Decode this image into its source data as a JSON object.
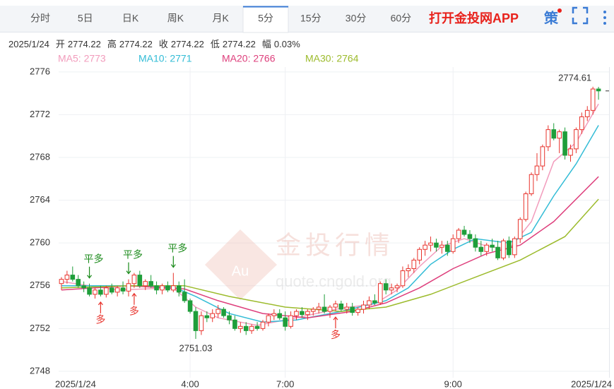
{
  "header": {
    "tabs": [
      "分时",
      "5日",
      "日K",
      "周K",
      "月K",
      "5分",
      "15分",
      "30分",
      "60分"
    ],
    "active_tab": 5,
    "promo": "打开金投网APP",
    "strategy": "策"
  },
  "info": {
    "date": "2025/1/24",
    "items": [
      {
        "label": "开",
        "value": "2774.22"
      },
      {
        "label": "高",
        "value": "2774.22"
      },
      {
        "label": "收",
        "value": "2774.22"
      },
      {
        "label": "低",
        "value": "2774.22"
      },
      {
        "label": "幅",
        "value": "0.03%"
      }
    ]
  },
  "watermark": {
    "logo": "Au",
    "brand": "金投行情",
    "site": "quote.cngold.org"
  },
  "chart_data": {
    "type": "candlestick",
    "up_color": "#e8332c",
    "down_color": "#1e9e3a",
    "grid": true,
    "xlim": [
      -0.5,
      97
    ],
    "ylim": [
      2747.4,
      2776.45
    ],
    "yticks": [
      2748,
      2752,
      2756,
      2760,
      2764,
      2768,
      2772,
      2776
    ],
    "xticks": [
      {
        "value": 0,
        "label": "2025/1/24"
      },
      {
        "value": 23,
        "label": "4:00"
      },
      {
        "value": 40,
        "label": "7:00"
      },
      {
        "value": 70,
        "label": "9:00"
      },
      {
        "value": 96,
        "label": "2025/1/24"
      }
    ],
    "ohlc": [
      [
        2756.2,
        2756.8,
        2755.6,
        2756.6
      ],
      [
        2756.6,
        2757.4,
        2756.2,
        2757.0
      ],
      [
        2757.0,
        2757.8,
        2756.4,
        2756.6
      ],
      [
        2756.6,
        2757.0,
        2755.8,
        2756.0
      ],
      [
        2756.0,
        2756.4,
        2755.4,
        2755.8
      ],
      [
        2755.8,
        2756.2,
        2755.0,
        2755.2
      ],
      [
        2755.2,
        2755.8,
        2754.8,
        2755.6
      ],
      [
        2755.6,
        2756.0,
        2755.0,
        2755.2
      ],
      [
        2755.2,
        2756.0,
        2754.9,
        2755.8
      ],
      [
        2755.8,
        2756.2,
        2755.2,
        2755.4
      ],
      [
        2755.4,
        2756.0,
        2755.0,
        2755.8
      ],
      [
        2755.8,
        2756.4,
        2755.2,
        2755.5
      ],
      [
        2755.5,
        2756.6,
        2755.0,
        2756.2
      ],
      [
        2756.2,
        2757.2,
        2755.8,
        2757.0
      ],
      [
        2757.0,
        2757.4,
        2755.8,
        2756.0
      ],
      [
        2756.0,
        2756.6,
        2755.6,
        2756.4
      ],
      [
        2756.4,
        2757.0,
        2755.8,
        2756.0
      ],
      [
        2756.0,
        2756.4,
        2755.2,
        2755.6
      ],
      [
        2755.6,
        2756.2,
        2755.2,
        2756.0
      ],
      [
        2756.0,
        2756.4,
        2755.4,
        2755.6
      ],
      [
        2755.6,
        2757.2,
        2755.4,
        2756.0
      ],
      [
        2756.0,
        2756.4,
        2755.0,
        2755.4
      ],
      [
        2755.4,
        2756.6,
        2754.4,
        2754.6
      ],
      [
        2754.6,
        2754.8,
        2753.4,
        2753.6
      ],
      [
        2753.6,
        2754.0,
        2751.03,
        2751.8
      ],
      [
        2751.8,
        2753.6,
        2751.4,
        2753.2
      ],
      [
        2753.2,
        2753.6,
        2752.6,
        2753.0
      ],
      [
        2753.0,
        2753.8,
        2752.6,
        2753.4
      ],
      [
        2753.4,
        2754.2,
        2753.0,
        2753.8
      ],
      [
        2753.8,
        2754.0,
        2753.0,
        2753.2
      ],
      [
        2753.2,
        2753.6,
        2752.4,
        2752.8
      ],
      [
        2752.8,
        2753.2,
        2751.8,
        2752.0
      ],
      [
        2752.0,
        2752.6,
        2751.6,
        2752.2
      ],
      [
        2752.2,
        2752.6,
        2751.4,
        2751.8
      ],
      [
        2751.8,
        2752.4,
        2751.5,
        2752.2
      ],
      [
        2752.2,
        2752.6,
        2751.8,
        2752.0
      ],
      [
        2752.0,
        2752.8,
        2751.8,
        2752.6
      ],
      [
        2752.6,
        2753.4,
        2752.2,
        2753.2
      ],
      [
        2753.2,
        2753.8,
        2752.8,
        2753.4
      ],
      [
        2753.4,
        2753.8,
        2752.8,
        2753.0
      ],
      [
        2753.0,
        2753.6,
        2751.8,
        2752.2
      ],
      [
        2752.2,
        2753.6,
        2752.0,
        2753.2
      ],
      [
        2753.2,
        2753.8,
        2752.8,
        2753.6
      ],
      [
        2753.6,
        2754.0,
        2753.0,
        2753.3
      ],
      [
        2753.3,
        2753.8,
        2752.8,
        2753.6
      ],
      [
        2753.6,
        2754.0,
        2753.2,
        2753.8
      ],
      [
        2753.8,
        2754.4,
        2753.4,
        2754.0
      ],
      [
        2754.0,
        2755.2,
        2753.4,
        2753.6
      ],
      [
        2753.6,
        2754.2,
        2753.0,
        2754.0
      ],
      [
        2754.0,
        2754.6,
        2753.6,
        2754.3
      ],
      [
        2754.3,
        2754.6,
        2753.6,
        2753.8
      ],
      [
        2753.8,
        2754.4,
        2753.4,
        2754.0
      ],
      [
        2754.0,
        2754.4,
        2753.2,
        2753.5
      ],
      [
        2753.5,
        2754.0,
        2753.2,
        2753.8
      ],
      [
        2753.8,
        2754.6,
        2753.4,
        2754.2
      ],
      [
        2754.2,
        2755.0,
        2753.8,
        2754.6
      ],
      [
        2754.6,
        2755.2,
        2754.2,
        2754.4
      ],
      [
        2754.4,
        2756.4,
        2754.2,
        2756.2
      ],
      [
        2756.2,
        2756.6,
        2755.2,
        2755.6
      ],
      [
        2755.6,
        2756.2,
        2755.2,
        2755.8
      ],
      [
        2755.8,
        2756.2,
        2755.4,
        2756.0
      ],
      [
        2756.0,
        2757.8,
        2755.8,
        2757.4
      ],
      [
        2757.4,
        2758.0,
        2756.8,
        2757.6
      ],
      [
        2757.6,
        2758.6,
        2757.2,
        2758.4
      ],
      [
        2758.4,
        2759.6,
        2758.0,
        2759.4
      ],
      [
        2759.4,
        2760.2,
        2758.8,
        2759.8
      ],
      [
        2759.8,
        2760.6,
        2759.2,
        2760.0
      ],
      [
        2760.0,
        2760.4,
        2759.2,
        2759.6
      ],
      [
        2759.6,
        2760.2,
        2759.0,
        2759.8
      ],
      [
        2759.8,
        2760.2,
        2758.8,
        2759.2
      ],
      [
        2759.2,
        2760.8,
        2759.0,
        2760.4
      ],
      [
        2760.4,
        2761.4,
        2760.0,
        2761.2
      ],
      [
        2761.2,
        2761.6,
        2760.6,
        2760.8
      ],
      [
        2760.8,
        2761.2,
        2760.0,
        2760.4
      ],
      [
        2760.4,
        2760.8,
        2759.2,
        2759.6
      ],
      [
        2759.6,
        2760.2,
        2758.8,
        2759.2
      ],
      [
        2759.2,
        2760.0,
        2758.8,
        2759.8
      ],
      [
        2759.8,
        2760.4,
        2759.2,
        2759.6
      ],
      [
        2759.6,
        2760.2,
        2758.4,
        2758.6
      ],
      [
        2758.6,
        2760.4,
        2758.4,
        2760.2
      ],
      [
        2760.2,
        2760.6,
        2758.6,
        2758.9
      ],
      [
        2758.9,
        2760.6,
        2758.6,
        2760.4
      ],
      [
        2760.4,
        2762.4,
        2760.0,
        2762.2
      ],
      [
        2762.2,
        2764.8,
        2762.0,
        2764.6
      ],
      [
        2764.6,
        2766.6,
        2764.4,
        2766.4
      ],
      [
        2766.4,
        2768.4,
        2765.8,
        2767.2
      ],
      [
        2767.2,
        2769.2,
        2766.8,
        2769.0
      ],
      [
        2769.0,
        2771.0,
        2768.6,
        2770.6
      ],
      [
        2770.6,
        2771.2,
        2769.6,
        2769.8
      ],
      [
        2769.8,
        2770.6,
        2768.4,
        2770.4
      ],
      [
        2770.4,
        2770.8,
        2767.8,
        2768.2
      ],
      [
        2768.2,
        2769.2,
        2767.6,
        2768.8
      ],
      [
        2768.8,
        2770.8,
        2768.4,
        2770.6
      ],
      [
        2770.6,
        2772.2,
        2770.2,
        2771.8
      ],
      [
        2771.8,
        2772.8,
        2771.4,
        2772.4
      ],
      [
        2772.4,
        2774.61,
        2772.0,
        2774.4
      ],
      [
        2774.4,
        2774.6,
        2773.4,
        2774.22
      ]
    ],
    "series": [
      {
        "name": "MA5: 2773",
        "color": "#f29cbc",
        "x": [
          0,
          10,
          20,
          24,
          28,
          35,
          42,
          50,
          56,
          60,
          64,
          68,
          72,
          76,
          80,
          84,
          88,
          92,
          96
        ],
        "values": [
          2756.4,
          2755.6,
          2755.8,
          2754.0,
          2753.0,
          2752.3,
          2753.0,
          2753.9,
          2754.3,
          2755.6,
          2757.8,
          2759.7,
          2760.4,
          2759.7,
          2759.4,
          2762.0,
          2767.6,
          2769.4,
          2773.0
        ]
      },
      {
        "name": "MA10: 2771",
        "color": "#33bcd6",
        "x": [
          0,
          10,
          20,
          24,
          30,
          36,
          42,
          50,
          58,
          62,
          66,
          70,
          74,
          80,
          84,
          88,
          92,
          96
        ],
        "values": [
          2756.0,
          2756.0,
          2755.9,
          2755.0,
          2753.4,
          2752.6,
          2752.8,
          2753.6,
          2754.6,
          2755.8,
          2758.0,
          2759.4,
          2760.4,
          2760.0,
          2761.0,
          2764.4,
          2767.4,
          2771.0
        ]
      },
      {
        "name": "MA20: 2766",
        "color": "#de3f7c",
        "x": [
          0,
          12,
          22,
          28,
          36,
          44,
          52,
          58,
          64,
          70,
          76,
          82,
          88,
          96
        ],
        "values": [
          2755.6,
          2756.0,
          2755.7,
          2754.6,
          2753.4,
          2753.0,
          2753.6,
          2754.4,
          2755.8,
          2757.6,
          2759.0,
          2759.8,
          2762.0,
          2766.2
        ]
      },
      {
        "name": "MA30: 2764",
        "color": "#9cbb2c",
        "x": [
          0,
          12,
          22,
          30,
          40,
          50,
          58,
          66,
          74,
          82,
          90,
          96
        ],
        "values": [
          2755.8,
          2756.0,
          2756.0,
          2755.0,
          2754.0,
          2753.6,
          2754.0,
          2755.2,
          2756.8,
          2758.4,
          2760.6,
          2764.1
        ]
      }
    ],
    "annotations": [
      {
        "index": 5,
        "label": "平多",
        "color": "#1a8a1a",
        "side": "above"
      },
      {
        "index": 12,
        "label": "平多",
        "color": "#1a8a1a",
        "side": "above"
      },
      {
        "index": 20,
        "label": "平多",
        "color": "#1a8a1a",
        "side": "above"
      },
      {
        "index": 7,
        "label": "多",
        "color": "#e8332c",
        "side": "below"
      },
      {
        "index": 13,
        "label": "多",
        "color": "#e8332c",
        "side": "below"
      },
      {
        "index": 49,
        "label": "多",
        "color": "#e8332c",
        "side": "below"
      }
    ],
    "extremes": [
      {
        "index": 95,
        "value": 2774.61
      },
      {
        "index": 24,
        "value": 2751.03
      }
    ]
  }
}
